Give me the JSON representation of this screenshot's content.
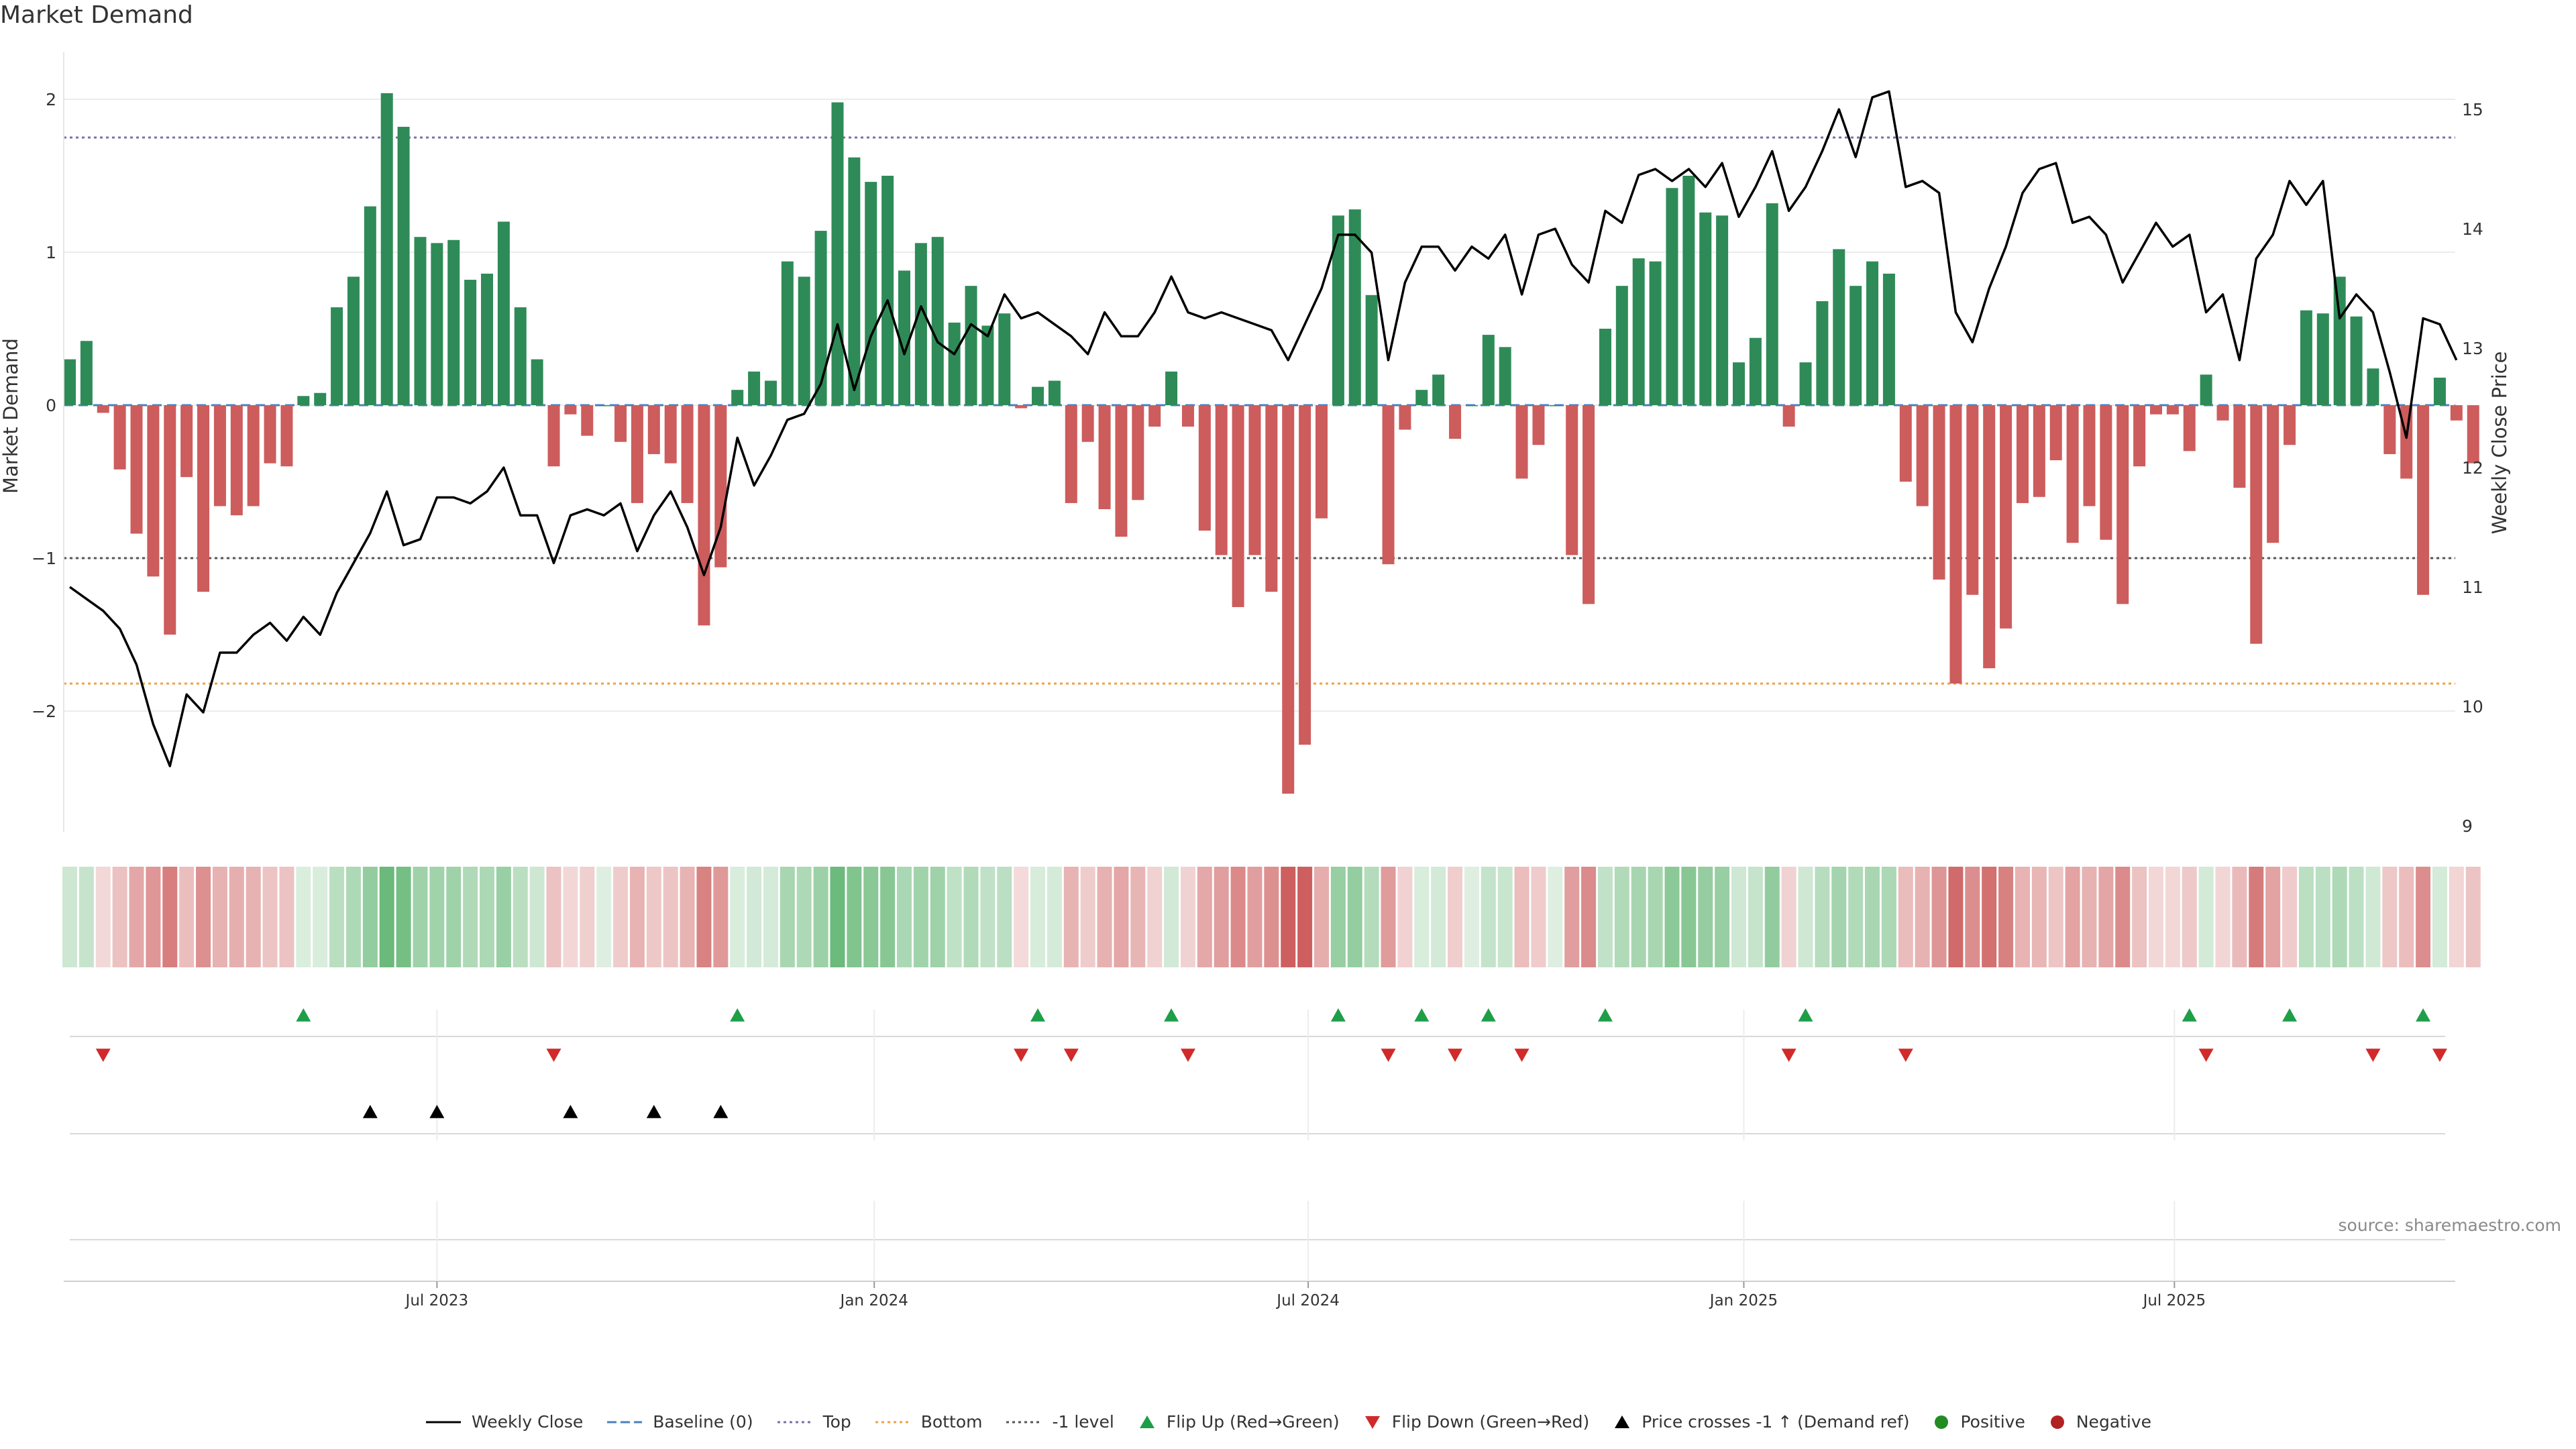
{
  "title": "Market Demand",
  "source": "source: sharemaestro.com",
  "colors": {
    "positive": "#2e8b57",
    "negative": "#cd5c5c",
    "price": "#000000",
    "baseline": "#4a7fc1",
    "top": "#7a6fa8",
    "bottom": "#f0a040",
    "minus_one": "#555555",
    "flip_up": "#1f9e49",
    "flip_down": "#d12a2a",
    "cross": "#000000",
    "legend_positive": "#228b22",
    "legend_negative": "#b22222"
  },
  "legend": {
    "items": [
      {
        "key": "price",
        "label": "Weekly Close",
        "icon": "line-solid"
      },
      {
        "key": "baseline",
        "label": "Baseline (0)",
        "icon": "line-dashed"
      },
      {
        "key": "top",
        "label": "Top",
        "icon": "line-dotted"
      },
      {
        "key": "bottom",
        "label": "Bottom",
        "icon": "line-dotted"
      },
      {
        "key": "minus_one",
        "label": "-1 level",
        "icon": "line-dotted"
      },
      {
        "key": "flip_up",
        "label": "Flip Up (Red→Green)",
        "icon": "triangle-up"
      },
      {
        "key": "flip_down",
        "label": "Flip Down (Green→Red)",
        "icon": "triangle-down"
      },
      {
        "key": "cross",
        "label": "Price crosses -1 ↑ (Demand ref)",
        "icon": "triangle-up"
      },
      {
        "key": "legend_positive",
        "label": "Positive",
        "icon": "circle"
      },
      {
        "key": "legend_negative",
        "label": "Negative",
        "icon": "circle"
      }
    ]
  },
  "chart_data": {
    "type": "bar",
    "title": "Market Demand",
    "ylabel": "Market Demand",
    "y2label": "Weekly Close Price",
    "ylim": [
      -2.75,
      2.25
    ],
    "y2lim": [
      9,
      15.5
    ],
    "yticks": [
      2,
      1,
      0,
      -1,
      -2
    ],
    "ytick_labels": [
      "2",
      "1",
      "0",
      "−1",
      "−2"
    ],
    "y2ticks": [
      15,
      14,
      13,
      12,
      11,
      10,
      9
    ],
    "reference_lines": {
      "top": 1.75,
      "bottom": -1.82,
      "minus_one": -1.0,
      "baseline": 0
    },
    "x_ticks": [
      {
        "label": "Jul 2023",
        "week": 22
      },
      {
        "label": "Jan 2024",
        "week": 48.2
      },
      {
        "label": "Jul 2024",
        "week": 74.2
      },
      {
        "label": "Jan 2025",
        "week": 100.3
      },
      {
        "label": "Jul 2025",
        "week": 126.1
      }
    ],
    "weeks": 144,
    "demand": [
      0.3,
      0.42,
      -0.05,
      -0.42,
      -0.84,
      -1.12,
      -1.5,
      -0.47,
      -1.22,
      -0.66,
      -0.72,
      -0.66,
      -0.38,
      -0.4,
      0.06,
      0.08,
      0.64,
      0.84,
      1.3,
      2.04,
      1.82,
      1.1,
      1.06,
      1.08,
      0.82,
      0.86,
      1.2,
      0.64,
      0.3,
      -0.4,
      -0.06,
      -0.2,
      0,
      -0.24,
      -0.64,
      -0.32,
      -0.38,
      -0.64,
      -1.44,
      -1.06,
      0.1,
      0.22,
      0.16,
      0.94,
      0.84,
      1.14,
      1.98,
      1.62,
      1.46,
      1.5,
      0.88,
      1.06,
      1.1,
      0.54,
      0.78,
      0.52,
      0.6,
      -0.02,
      0.12,
      0.16,
      -0.64,
      -0.24,
      -0.68,
      -0.86,
      -0.62,
      -0.14,
      0.22,
      -0.14,
      -0.82,
      -0.98,
      -1.32,
      -0.98,
      -1.22,
      -2.54,
      -2.22,
      -0.74,
      1.24,
      1.28,
      0.72,
      -1.04,
      -0.16,
      0.1,
      0.2,
      -0.22,
      0,
      0.46,
      0.38,
      -0.48,
      -0.26,
      0,
      -0.98,
      -1.3,
      0.5,
      0.78,
      0.96,
      0.94,
      1.42,
      1.5,
      1.26,
      1.24,
      0.28,
      0.44,
      1.32,
      -0.14,
      0.28,
      0.68,
      1.02,
      0.78,
      0.94,
      0.86,
      -0.5,
      -0.66,
      -1.14,
      -1.82,
      -1.24,
      -1.72,
      -1.46,
      -0.64,
      -0.6,
      -0.36,
      -0.9,
      -0.66,
      -0.88,
      -1.3,
      -0.4,
      -0.06,
      -0.06,
      -0.3,
      0.2,
      -0.1,
      -0.54,
      -1.56,
      -0.9,
      -0.26,
      0.62,
      0.6,
      0.84,
      0.58,
      0.24,
      -0.32,
      -0.48,
      -1.24,
      0.18,
      -0.1,
      -0.38
    ],
    "price": [
      11,
      10.9,
      10.8,
      10.65,
      10.35,
      9.85,
      9.5,
      10.1,
      9.95,
      10.45,
      10.45,
      10.6,
      10.7,
      10.55,
      10.75,
      10.6,
      10.95,
      11.2,
      11.45,
      11.8,
      11.35,
      11.4,
      11.75,
      11.75,
      11.7,
      11.8,
      12.0,
      11.6,
      11.6,
      11.2,
      11.6,
      11.65,
      11.6,
      11.7,
      11.3,
      11.6,
      11.8,
      11.5,
      11.1,
      11.5,
      12.25,
      11.85,
      12.1,
      12.4,
      12.45,
      12.7,
      13.2,
      12.65,
      13.1,
      13.4,
      12.95,
      13.35,
      13.05,
      12.95,
      13.2,
      13.1,
      13.45,
      13.25,
      13.3,
      13.2,
      13.1,
      12.95,
      13.3,
      13.1,
      13.1,
      13.3,
      13.6,
      13.3,
      13.25,
      13.3,
      13.25,
      13.2,
      13.15,
      12.9,
      13.2,
      13.5,
      13.95,
      13.95,
      13.8,
      12.9,
      13.55,
      13.85,
      13.85,
      13.65,
      13.85,
      13.75,
      13.95,
      13.45,
      13.95,
      14.0,
      13.7,
      13.55,
      14.15,
      14.05,
      14.45,
      14.5,
      14.4,
      14.5,
      14.35,
      14.55,
      14.1,
      14.35,
      14.65,
      14.15,
      14.35,
      14.65,
      15.0,
      14.6,
      15.1,
      15.15,
      14.35,
      14.4,
      14.3,
      13.3,
      13.05,
      13.5,
      13.85,
      14.3,
      14.5,
      14.55,
      14.05,
      14.1,
      13.95,
      13.55,
      13.8,
      14.05,
      13.85,
      13.95,
      13.3,
      13.45,
      12.9,
      13.75,
      13.95,
      14.4,
      14.2,
      14.4,
      13.25,
      13.45,
      13.3,
      12.8,
      12.25,
      13.25,
      13.2,
      12.9
    ],
    "flip_up_weeks": [
      14,
      40,
      58,
      66,
      76,
      81,
      85,
      92,
      104,
      127,
      133,
      141
    ],
    "flip_down_weeks": [
      2,
      29,
      57,
      60,
      67,
      79,
      83,
      87,
      103,
      110,
      128,
      138,
      142
    ],
    "price_cross_weeks": [
      18,
      22,
      30,
      35,
      39
    ]
  }
}
